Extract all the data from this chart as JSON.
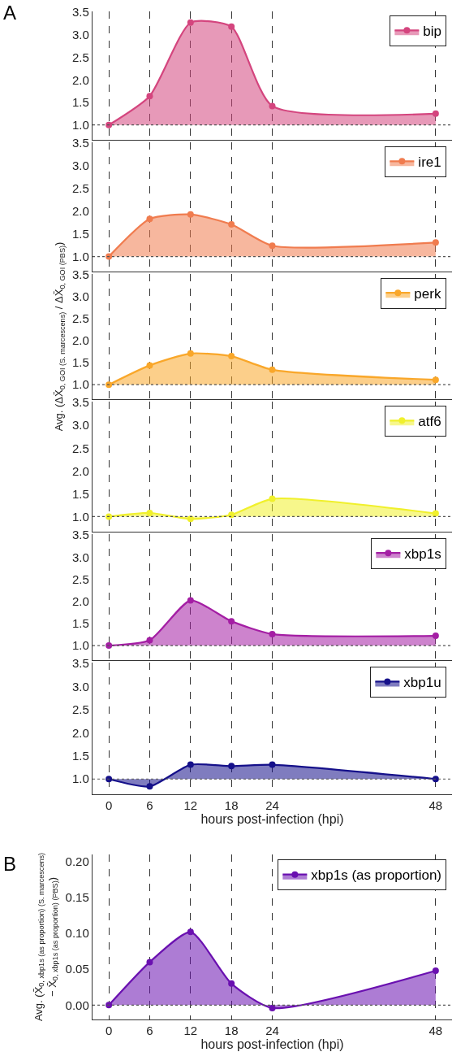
{
  "chart_data": [
    {
      "type": "area",
      "annotations": [
        "A"
      ],
      "x": [
        0,
        6,
        12,
        18,
        24,
        48
      ],
      "xlim": [
        -2.4,
        50.4
      ],
      "xticks": [
        0,
        6,
        12,
        18,
        24,
        48
      ],
      "ylim": [
        0.67,
        3.52
      ],
      "yticks": [
        {
          "value": 1,
          "label": "1.0"
        },
        {
          "value": 1.5,
          "label": "1.5"
        },
        {
          "value": 2,
          "label": "2.0"
        },
        {
          "value": 2.5,
          "label": "2.5"
        },
        {
          "value": 3,
          "label": "3.0"
        },
        {
          "value": 3.5,
          "label": "3.5"
        }
      ],
      "tick_labels": "y",
      "grid": "x",
      "legend": "top right",
      "marker": "circle",
      "line_style": "solid",
      "ref_lines": [
        {
          "axis": "y",
          "value": 1,
          "line_style": "dotted",
          "color": "#555555"
        }
      ],
      "series": [
        {
          "name": "bip",
          "color": "#d4457e",
          "values": [
            1.0,
            1.64,
            3.27,
            3.18,
            1.42,
            1.25
          ]
        }
      ]
    },
    {
      "type": "area",
      "x": [
        0,
        6,
        12,
        18,
        24,
        48
      ],
      "xlim": [
        -2.4,
        50.4
      ],
      "xticks": [
        0,
        6,
        12,
        18,
        24,
        48
      ],
      "ylim": [
        0.67,
        3.52
      ],
      "yticks": [
        {
          "value": 1,
          "label": "1.0"
        },
        {
          "value": 1.5,
          "label": "1.5"
        },
        {
          "value": 2,
          "label": "2.0"
        },
        {
          "value": 2.5,
          "label": "2.5"
        },
        {
          "value": 3,
          "label": "3.0"
        },
        {
          "value": 3.5,
          "label": "3.5"
        }
      ],
      "tick_labels": "y",
      "grid": "x",
      "legend": "top right",
      "marker": "circle",
      "line_style": "solid",
      "ref_lines": [
        {
          "axis": "y",
          "value": 1,
          "line_style": "dotted",
          "color": "#555555"
        }
      ],
      "series": [
        {
          "name": "ire1",
          "color": "#f07c4f",
          "values": [
            1.0,
            1.83,
            1.93,
            1.71,
            1.24,
            1.31
          ]
        }
      ]
    },
    {
      "type": "area",
      "ylabel": "Avg. (ΔX̄$_{0, GOI (S. marcescens)}$ / ΔX̄$_{0, GOI (PBS)}$)",
      "x": [
        0,
        6,
        12,
        18,
        24,
        48
      ],
      "xlim": [
        -2.4,
        50.4
      ],
      "xticks": [
        0,
        6,
        12,
        18,
        24,
        48
      ],
      "ylim": [
        0.67,
        3.52
      ],
      "yticks": [
        {
          "value": 1,
          "label": "1.0"
        },
        {
          "value": 1.5,
          "label": "1.5"
        },
        {
          "value": 2,
          "label": "2.0"
        },
        {
          "value": 2.5,
          "label": "2.5"
        },
        {
          "value": 3,
          "label": "3.0"
        },
        {
          "value": 3.5,
          "label": "3.5"
        }
      ],
      "tick_labels": "y",
      "grid": "x",
      "legend": "top right",
      "marker": "circle",
      "line_style": "solid",
      "ref_lines": [
        {
          "axis": "y",
          "value": 1,
          "line_style": "dotted",
          "color": "#555555"
        }
      ],
      "series": [
        {
          "name": "perk",
          "color": "#f9a72a",
          "values": [
            1.0,
            1.44,
            1.71,
            1.65,
            1.34,
            1.11
          ]
        }
      ]
    },
    {
      "type": "area",
      "x": [
        0,
        6,
        12,
        18,
        24,
        48
      ],
      "xlim": [
        -2.4,
        50.4
      ],
      "xticks": [
        0,
        6,
        12,
        18,
        24,
        48
      ],
      "ylim": [
        0.67,
        3.52
      ],
      "yticks": [
        {
          "value": 1,
          "label": "1.0"
        },
        {
          "value": 1.5,
          "label": "1.5"
        },
        {
          "value": 2,
          "label": "2.0"
        },
        {
          "value": 2.5,
          "label": "2.5"
        },
        {
          "value": 3,
          "label": "3.0"
        },
        {
          "value": 3.5,
          "label": "3.5"
        }
      ],
      "tick_labels": "y",
      "grid": "x",
      "legend": "top right",
      "marker": "circle",
      "line_style": "solid",
      "ref_lines": [
        {
          "axis": "y",
          "value": 1,
          "line_style": "dotted",
          "color": "#555555"
        }
      ],
      "series": [
        {
          "name": "atf6",
          "color": "#f0f02c",
          "values": [
            1.0,
            1.08,
            0.95,
            1.04,
            1.39,
            1.07
          ]
        }
      ]
    },
    {
      "type": "area",
      "x": [
        0,
        6,
        12,
        18,
        24,
        48
      ],
      "xlim": [
        -2.4,
        50.4
      ],
      "xticks": [
        0,
        6,
        12,
        18,
        24,
        48
      ],
      "ylim": [
        0.67,
        3.52
      ],
      "yticks": [
        {
          "value": 1,
          "label": "1.0"
        },
        {
          "value": 1.5,
          "label": "1.5"
        },
        {
          "value": 2,
          "label": "2.0"
        },
        {
          "value": 2.5,
          "label": "2.5"
        },
        {
          "value": 3,
          "label": "3.0"
        },
        {
          "value": 3.5,
          "label": "3.5"
        }
      ],
      "tick_labels": "y",
      "grid": "x",
      "legend": "top right",
      "marker": "circle",
      "line_style": "solid",
      "ref_lines": [
        {
          "axis": "y",
          "value": 1,
          "line_style": "dotted",
          "color": "#555555"
        }
      ],
      "series": [
        {
          "name": "xbp1s",
          "color": "#a41ea4",
          "values": [
            1.0,
            1.12,
            2.02,
            1.55,
            1.26,
            1.22
          ]
        }
      ]
    },
    {
      "type": "area",
      "xlabel": "hours post-infection (hpi)",
      "x": [
        0,
        6,
        12,
        18,
        24,
        48
      ],
      "xlim": [
        -2.4,
        50.4
      ],
      "xticks": [
        0,
        6,
        12,
        18,
        24,
        48
      ],
      "ylim": [
        0.67,
        3.52
      ],
      "yticks": [
        {
          "value": 1,
          "label": "1.0"
        },
        {
          "value": 1.5,
          "label": "1.5"
        },
        {
          "value": 2,
          "label": "2.0"
        },
        {
          "value": 2.5,
          "label": "2.5"
        },
        {
          "value": 3,
          "label": "3.0"
        },
        {
          "value": 3.5,
          "label": "3.5"
        }
      ],
      "grid": "x",
      "legend": "top right",
      "marker": "circle",
      "line_style": "solid",
      "ref_lines": [
        {
          "axis": "y",
          "value": 1,
          "line_style": "dotted",
          "color": "#555555"
        }
      ],
      "series": [
        {
          "name": "xbp1u",
          "color": "#15108a",
          "values": [
            1.0,
            0.84,
            1.31,
            1.28,
            1.31,
            1.0
          ]
        }
      ]
    },
    {
      "type": "area",
      "annotations": [
        "B"
      ],
      "xlabel": "hours post-infection (hpi)",
      "ylabel": "Avg. (X̄$_{0, xbp1s (as proportion) (S. marcescens)}$\n− X̄$_{0, xbp1s (as proportion) (PBS)}$)",
      "x": [
        0,
        6,
        12,
        18,
        24,
        48
      ],
      "xlim": [
        -2.4,
        50.4
      ],
      "xticks": [
        0,
        6,
        12,
        18,
        24,
        48
      ],
      "ylim": [
        -0.02,
        0.21
      ],
      "yticks": [
        {
          "value": 0,
          "label": "0.00"
        },
        {
          "value": 0.05,
          "label": "0.05"
        },
        {
          "value": 0.1,
          "label": "0.10"
        },
        {
          "value": 0.15,
          "label": "0.15"
        },
        {
          "value": 0.2,
          "label": "0.20"
        }
      ],
      "grid": "x",
      "legend": "top right",
      "marker": "circle",
      "line_style": "solid",
      "ref_lines": [
        {
          "axis": "y",
          "value": 0,
          "line_style": "dotted",
          "color": "#555555"
        }
      ],
      "series": [
        {
          "name": "xbp1s (as proportion)",
          "color": "#6a10b0",
          "values": [
            0,
            0.06,
            0.102,
            0.03,
            -0.004,
            0.048
          ]
        }
      ]
    }
  ]
}
